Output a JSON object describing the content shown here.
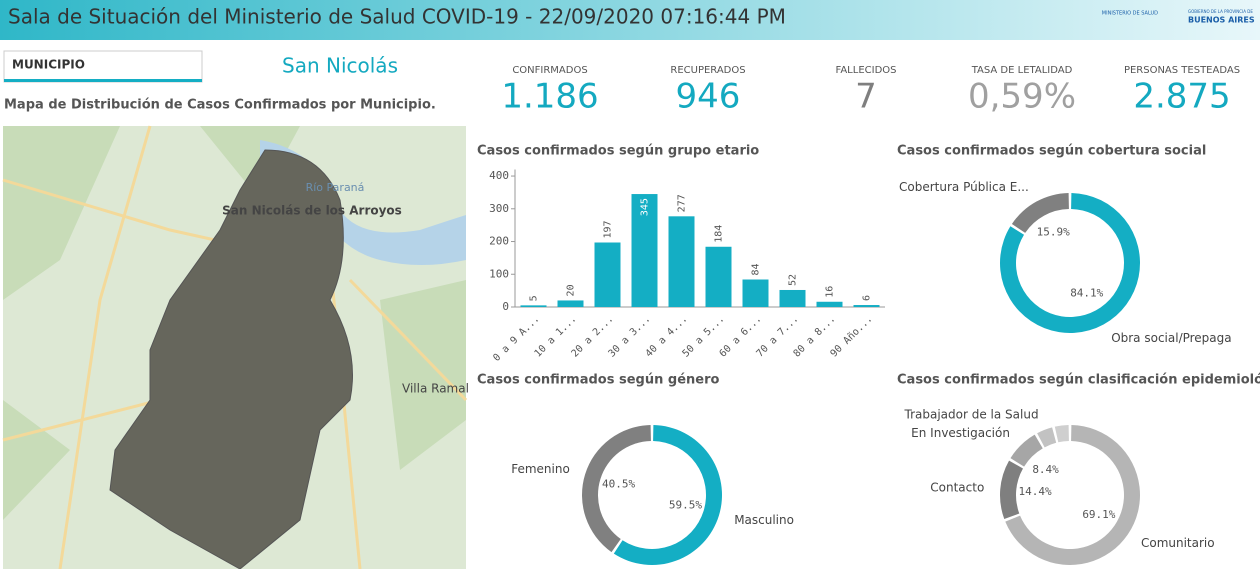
{
  "header": {
    "title": "Sala de Situación del Ministerio de Salud COVID-19 - 22/09/2020 07:16:44 PM",
    "logo": [
      "MINISTERIO DE SALUD",
      "GOBIERNO DE LA PROVINCIA DE",
      "BUENOS AIRES"
    ]
  },
  "filter": {
    "label": "MUNICIPIO",
    "value": "San Nicolás"
  },
  "map": {
    "title": "Mapa de Distribución de Casos Confirmados por Municipio.",
    "labels": [
      "Río Paraná",
      "San Nicolás de los Arroyos",
      "Villa Ramal"
    ]
  },
  "kpis": [
    {
      "label": "CONFIRMADOS",
      "value": "1.186",
      "color": "#14a9c0"
    },
    {
      "label": "RECUPERADOS",
      "value": "946",
      "color": "#14a9c0"
    },
    {
      "label": "FALLECIDOS",
      "value": "7",
      "color": "#7f7f7f"
    },
    {
      "label": "TASA DE LETALIDAD",
      "value": "0,59%",
      "color": "#a0a0a0"
    },
    {
      "label": "PERSONAS TESTEADAS",
      "value": "2.875",
      "color": "#14a9c0"
    }
  ],
  "charts": [
    {
      "type": "bar",
      "title": "Casos confirmados según grupo etario",
      "categories": [
        "0 a 9 A...",
        "10 a 1...",
        "20 a 2...",
        "30 a 3...",
        "40 a 4...",
        "50 a 5...",
        "60 a 6...",
        "70 a 7...",
        "80 a 8...",
        "90 Año..."
      ],
      "values": [
        5,
        20,
        197,
        345,
        277,
        184,
        84,
        52,
        16,
        6
      ],
      "color": "#14aec4",
      "ylim": [
        0,
        420
      ],
      "yticks": [
        0,
        100,
        200,
        300,
        400
      ]
    },
    {
      "type": "donut",
      "title": "Casos confirmados según cobertura social",
      "categories": [
        "Obra social/Prepaga",
        "Cobertura Pública E..."
      ],
      "values": [
        84.1,
        15.9
      ],
      "value_labels": [
        "84.1%",
        "15.9%"
      ],
      "colors": [
        "#14aec4",
        "#808080"
      ]
    },
    {
      "type": "donut",
      "title": "Casos confirmados según género",
      "categories": [
        "Masculino",
        "Femenino"
      ],
      "values": [
        59.5,
        40.5
      ],
      "value_labels": [
        "59.5%",
        "40.5%"
      ],
      "colors": [
        "#14aec4",
        "#808080"
      ]
    },
    {
      "type": "donut",
      "title": "Casos confirmados según clasificación epidemioló...",
      "categories": [
        "Comunitario",
        "Contacto",
        "En Investigación",
        "Trabajador de la Salud",
        null
      ],
      "values": [
        69.1,
        14.4,
        8.4,
        4.3,
        3.8
      ],
      "value_labels": [
        "69.1%",
        "14.4%",
        "8.4%",
        null,
        null
      ],
      "colors": [
        "#b5b5b5",
        "#7f7f7f",
        "#a6a6a6",
        "#c2c2c2",
        "#cfcfcf"
      ]
    }
  ]
}
